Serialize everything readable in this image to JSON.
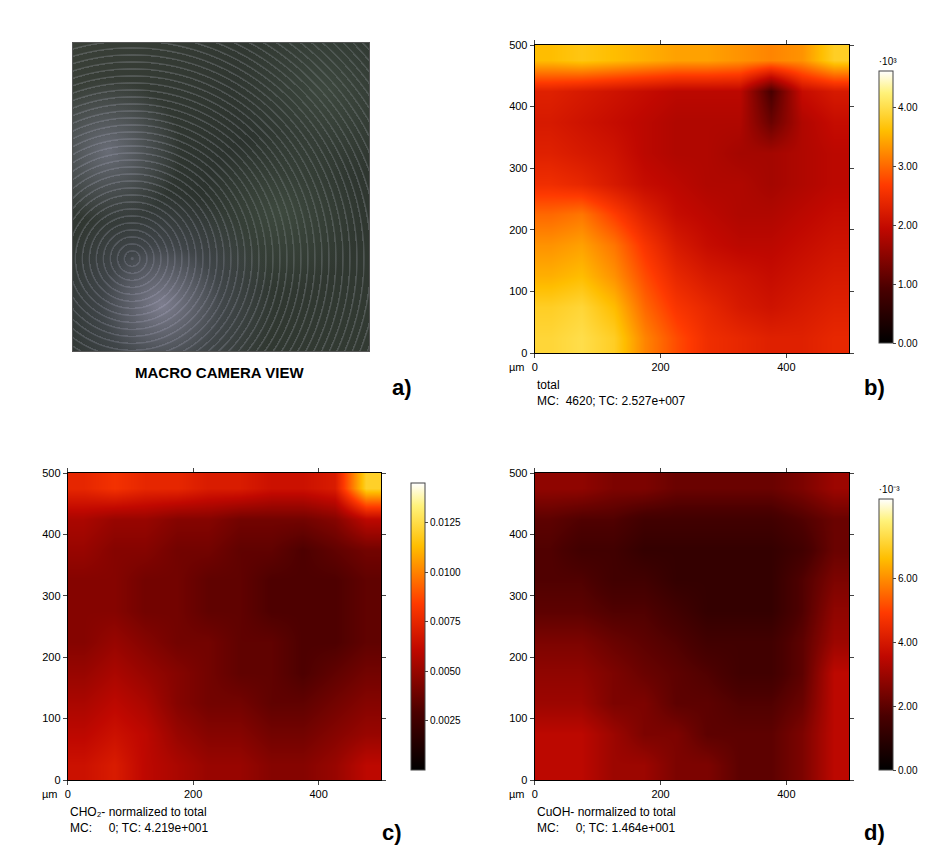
{
  "chart_data": [
    {
      "type": "image",
      "caption": "MACRO CAMERA VIEW",
      "panel": "a)"
    },
    {
      "type": "heatmap",
      "panel": "b)",
      "title": "total",
      "subtitle": "MC:  4620; TC: 2.527e+007",
      "xlabel": "µm",
      "xlim": [
        0,
        500
      ],
      "ylim": [
        0,
        500
      ],
      "xticks": [
        0,
        200,
        400
      ],
      "yticks": [
        0,
        100,
        200,
        300,
        400,
        500
      ],
      "x": [
        25,
        75,
        125,
        175,
        225,
        275,
        325,
        375,
        425,
        475
      ],
      "y": [
        25,
        75,
        125,
        175,
        225,
        275,
        325,
        375,
        425,
        475
      ],
      "cells": [
        [
          3900,
          4000,
          3800,
          3200,
          2800,
          2500,
          2400,
          2300,
          2300,
          2400
        ],
        [
          3800,
          3900,
          3600,
          3000,
          2600,
          2400,
          2200,
          2100,
          2200,
          2300
        ],
        [
          3500,
          3600,
          3300,
          2800,
          2400,
          2200,
          2100,
          2000,
          2100,
          2200
        ],
        [
          3300,
          3400,
          3100,
          2600,
          2200,
          2000,
          1900,
          1900,
          2000,
          2100
        ],
        [
          3000,
          3100,
          2700,
          2300,
          2000,
          1900,
          1800,
          1800,
          1900,
          2000
        ],
        [
          2500,
          2400,
          2200,
          2000,
          1900,
          1800,
          1800,
          1700,
          1800,
          1900
        ],
        [
          2300,
          2200,
          2100,
          1900,
          1800,
          1800,
          1700,
          1700,
          1800,
          1900
        ],
        [
          2200,
          2100,
          2000,
          1900,
          1800,
          1800,
          1800,
          1200,
          1800,
          2000
        ],
        [
          2300,
          2200,
          2100,
          2000,
          1900,
          1900,
          1900,
          900,
          2000,
          2200
        ],
        [
          3600,
          3700,
          3600,
          3500,
          3400,
          3400,
          3300,
          3200,
          3300,
          3800
        ]
      ],
      "zlim": [
        0,
        4620
      ],
      "zticks": [
        {
          "value": 0,
          "label": "0.00"
        },
        {
          "value": 1000,
          "label": "1.00"
        },
        {
          "value": 2000,
          "label": "2.00"
        },
        {
          "value": 3000,
          "label": "3.00"
        },
        {
          "value": 4000,
          "label": "4.00"
        }
      ],
      "colorbar_title": "·10³"
    },
    {
      "type": "heatmap",
      "panel": "c)",
      "title": "CHO₂- normalized to total",
      "subtitle": "MC:     0; TC: 4.219e+001",
      "xlabel": "µm",
      "xlim": [
        0,
        500
      ],
      "ylim": [
        0,
        500
      ],
      "xticks": [
        0,
        200,
        400
      ],
      "yticks": [
        0,
        100,
        200,
        300,
        400,
        500
      ],
      "x": [
        25,
        75,
        125,
        175,
        225,
        275,
        325,
        375,
        425,
        475
      ],
      "y": [
        25,
        75,
        125,
        175,
        225,
        275,
        325,
        375,
        425,
        475
      ],
      "cells": [
        [
          0.0065,
          0.007,
          0.006,
          0.0055,
          0.005,
          0.005,
          0.0045,
          0.0045,
          0.005,
          0.006
        ],
        [
          0.006,
          0.0065,
          0.006,
          0.005,
          0.0045,
          0.0045,
          0.004,
          0.004,
          0.0045,
          0.005
        ],
        [
          0.0055,
          0.006,
          0.0055,
          0.0045,
          0.004,
          0.004,
          0.0035,
          0.0035,
          0.004,
          0.0045
        ],
        [
          0.005,
          0.0055,
          0.005,
          0.0045,
          0.004,
          0.0035,
          0.0035,
          0.003,
          0.0035,
          0.004
        ],
        [
          0.0045,
          0.005,
          0.0045,
          0.004,
          0.004,
          0.0035,
          0.0035,
          0.003,
          0.003,
          0.0035
        ],
        [
          0.0045,
          0.0045,
          0.004,
          0.004,
          0.0035,
          0.0035,
          0.003,
          0.003,
          0.003,
          0.0035
        ],
        [
          0.0045,
          0.0045,
          0.004,
          0.004,
          0.0035,
          0.0035,
          0.003,
          0.003,
          0.003,
          0.0035
        ],
        [
          0.005,
          0.0045,
          0.0045,
          0.004,
          0.004,
          0.0035,
          0.0035,
          0.003,
          0.0035,
          0.004
        ],
        [
          0.0055,
          0.005,
          0.005,
          0.0045,
          0.0045,
          0.004,
          0.004,
          0.004,
          0.0045,
          0.006
        ],
        [
          0.0075,
          0.008,
          0.0075,
          0.0075,
          0.007,
          0.007,
          0.0065,
          0.0065,
          0.007,
          0.012
        ]
      ],
      "zlim": [
        0,
        0.0145
      ],
      "zticks": [
        0.0025,
        {
          "value": 0.005,
          "label": "0.0050"
        },
        0.0075,
        {
          "value": 0.01,
          "label": "0.0100"
        },
        0.0125
      ]
    },
    {
      "type": "heatmap",
      "panel": "d)",
      "title": "CuOH- normalized to total",
      "subtitle": "MC:     0; TC: 1.464e+001",
      "xlabel": "µm",
      "xlim": [
        0,
        500
      ],
      "ylim": [
        0,
        500
      ],
      "xticks": [
        0,
        200,
        400
      ],
      "yticks": [
        0,
        100,
        200,
        300,
        400,
        500
      ],
      "x": [
        25,
        75,
        125,
        175,
        225,
        275,
        325,
        375,
        425,
        475
      ],
      "y": [
        25,
        75,
        125,
        175,
        225,
        275,
        325,
        375,
        425,
        475
      ],
      "cells": [
        [
          0.0035,
          0.0035,
          0.003,
          0.003,
          0.0025,
          0.0025,
          0.002,
          0.002,
          0.0025,
          0.0035
        ],
        [
          0.0035,
          0.0035,
          0.003,
          0.0025,
          0.0025,
          0.002,
          0.002,
          0.002,
          0.0025,
          0.0035
        ],
        [
          0.003,
          0.003,
          0.0025,
          0.0025,
          0.002,
          0.002,
          0.0018,
          0.0018,
          0.0022,
          0.0035
        ],
        [
          0.0028,
          0.0028,
          0.0025,
          0.0022,
          0.002,
          0.0018,
          0.0015,
          0.0015,
          0.002,
          0.0035
        ],
        [
          0.0025,
          0.0025,
          0.0022,
          0.002,
          0.0018,
          0.0015,
          0.0015,
          0.0015,
          0.002,
          0.003
        ],
        [
          0.002,
          0.002,
          0.0018,
          0.0018,
          0.0015,
          0.0012,
          0.0012,
          0.0012,
          0.0018,
          0.0028
        ],
        [
          0.0018,
          0.0018,
          0.0015,
          0.0015,
          0.0012,
          0.0012,
          0.0012,
          0.0012,
          0.0018,
          0.0025
        ],
        [
          0.0018,
          0.0015,
          0.0015,
          0.0012,
          0.0012,
          0.0012,
          0.0012,
          0.0012,
          0.0015,
          0.0022
        ],
        [
          0.002,
          0.0018,
          0.0018,
          0.0015,
          0.0015,
          0.0015,
          0.0015,
          0.0015,
          0.0018,
          0.0022
        ],
        [
          0.0028,
          0.0028,
          0.0025,
          0.0025,
          0.0022,
          0.0022,
          0.0022,
          0.0022,
          0.0025,
          0.003
        ]
      ],
      "zlim": [
        0,
        0.0085
      ],
      "zticks": [
        {
          "value": 0,
          "label": "0.00"
        },
        {
          "value": 0.002,
          "label": "2.00"
        },
        {
          "value": 0.004,
          "label": "4.00"
        },
        {
          "value": 0.006,
          "label": "6.00"
        }
      ],
      "colorbar_title": "·10⁻³"
    }
  ]
}
